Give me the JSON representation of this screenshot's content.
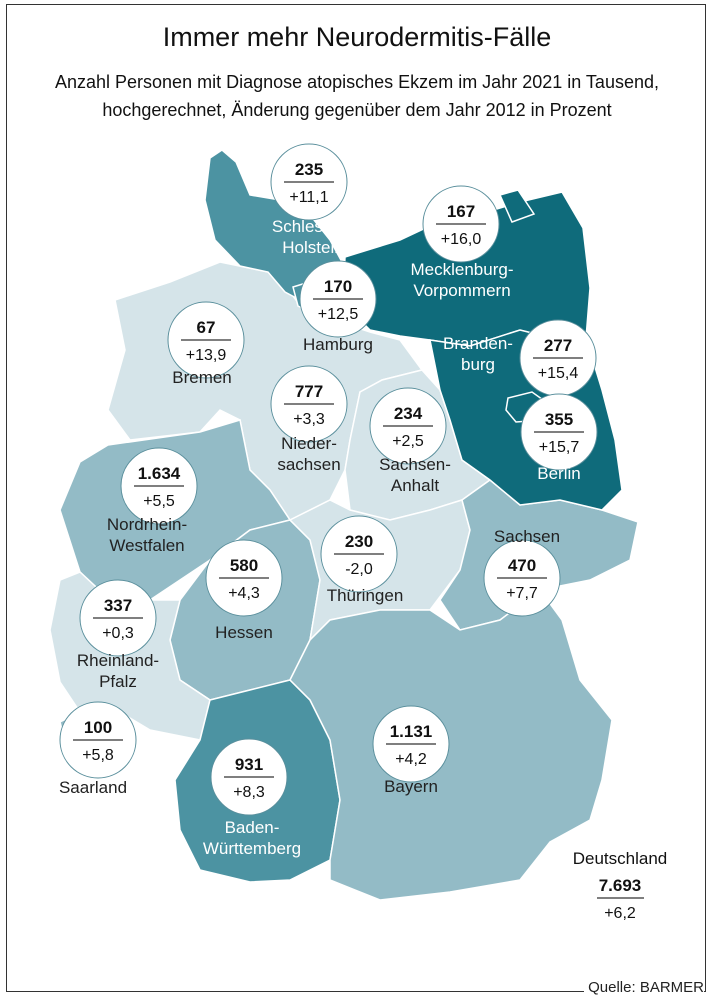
{
  "title": "Immer mehr Neurodermitis-Fälle",
  "subtitle_line1": "Anzahl Personen mit Diagnose atopisches Ekzem im Jahr 2021 in Tausend,",
  "subtitle_line2": "hochgerechnet, Änderung gegenüber dem Jahr 2012 in Prozent",
  "source": "Quelle: BARMER",
  "colors": {
    "dark": "#0f6b7b",
    "medium": "#4c93a2",
    "mid_light": "#93bbc6",
    "light": "#d5e4e9"
  },
  "states": [
    {
      "name": [
        "Schleswig-",
        "Holstein"
      ],
      "value": "235",
      "change": "+11,1",
      "shade": "medium"
    },
    {
      "name": [
        "Hamburg"
      ],
      "value": "170",
      "change": "+12,5",
      "shade": "medium"
    },
    {
      "name": [
        "Bremen"
      ],
      "value": "67",
      "change": "+13,9",
      "shade": "light"
    },
    {
      "name": [
        "Mecklenburg-",
        "Vorpommern"
      ],
      "value": "167",
      "change": "+16,0",
      "shade": "dark"
    },
    {
      "name": [
        "Branden-",
        "burg"
      ],
      "value": "277",
      "change": "+15,4",
      "shade": "dark"
    },
    {
      "name": [
        "Berlin"
      ],
      "value": "355",
      "change": "+15,7",
      "shade": "dark"
    },
    {
      "name": [
        "Nieder-",
        "sachsen"
      ],
      "value": "777",
      "change": "+3,3",
      "shade": "light"
    },
    {
      "name": [
        "Sachsen-",
        "Anhalt"
      ],
      "value": "234",
      "change": "+2,5",
      "shade": "light"
    },
    {
      "name": [
        "Nordrhein-",
        "Westfalen"
      ],
      "value": "1.634",
      "change": "+5,5",
      "shade": "mid_light"
    },
    {
      "name": [
        "Hessen"
      ],
      "value": "580",
      "change": "+4,3",
      "shade": "mid_light"
    },
    {
      "name": [
        "Thüringen"
      ],
      "value": "230",
      "change": "-2,0",
      "shade": "light"
    },
    {
      "name": [
        "Sachsen"
      ],
      "value": "470",
      "change": "+7,7",
      "shade": "mid_light"
    },
    {
      "name": [
        "Rheinland-",
        "Pfalz"
      ],
      "value": "337",
      "change": "+0,3",
      "shade": "light"
    },
    {
      "name": [
        "Saarland"
      ],
      "value": "100",
      "change": "+5,8",
      "shade": "mid_light"
    },
    {
      "name": [
        "Baden-",
        "Württemberg"
      ],
      "value": "931",
      "change": "+8,3",
      "shade": "medium"
    },
    {
      "name": [
        "Bayern"
      ],
      "value": "1.131",
      "change": "+4,2",
      "shade": "mid_light"
    }
  ],
  "total": {
    "name": "Deutschland",
    "value": "7.693",
    "change": "+6,2"
  }
}
